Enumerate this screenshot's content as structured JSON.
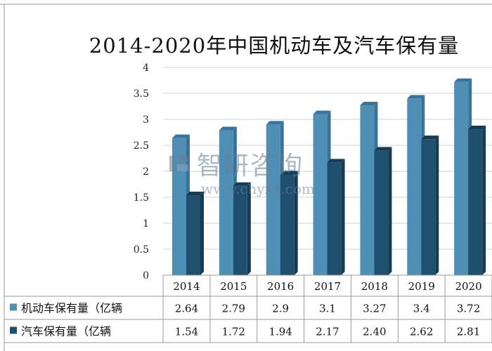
{
  "chart_data": {
    "type": "bar",
    "title": "2014-2020年中国机动车及汽车保有量",
    "categories": [
      "2014",
      "2015",
      "2016",
      "2017",
      "2018",
      "2019",
      "2020"
    ],
    "series": [
      {
        "name": "机动车保有量（亿辆",
        "values": [
          2.64,
          2.79,
          2.9,
          3.1,
          3.27,
          3.4,
          3.72
        ],
        "labels": [
          "2.64",
          "2.79",
          "2.9",
          "3.1",
          "3.27",
          "3.4",
          "3.72"
        ]
      },
      {
        "name": "汽车保有量（亿辆",
        "values": [
          1.54,
          1.72,
          1.94,
          2.17,
          2.4,
          2.62,
          2.81
        ],
        "labels": [
          "1.54",
          "1.72",
          "1.94",
          "2.17",
          "2.40",
          "2.62",
          "2.81"
        ]
      }
    ],
    "yticks": [
      "0",
      "0.5",
      "1",
      "1.5",
      "2",
      "2.5",
      "3",
      "3.5",
      "4"
    ],
    "ylim": [
      0,
      4
    ],
    "grid": true,
    "legend": "data-table-left",
    "colors": {
      "series1": "#4f8fb5",
      "series2": "#1e4f6e",
      "grid": "#d0d0d0",
      "axis": "#9a9a9a"
    }
  },
  "watermark": {
    "text": "智研咨询",
    "url": "www.chyxx.com"
  }
}
